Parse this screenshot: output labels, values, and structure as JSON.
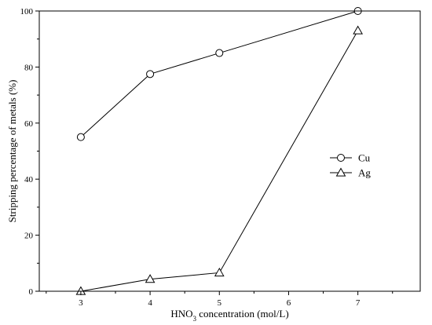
{
  "chart_data": {
    "type": "line",
    "x": [
      3,
      4,
      5,
      7
    ],
    "xlim": [
      2.4,
      7.9
    ],
    "ylim": [
      0,
      100
    ],
    "xticks": [
      3,
      4,
      5,
      6,
      7
    ],
    "yticks": [
      0,
      20,
      40,
      60,
      80,
      100
    ],
    "xlabel": "HNO3 concentration (mol/L)",
    "xlabel_parts": {
      "prefix": "HNO",
      "subscript": "3",
      "suffix": " concentration (mol/L)"
    },
    "ylabel": "Stripping percentage of metals (%)",
    "grid": false,
    "legend_position": "right",
    "series": [
      {
        "name": "Cu",
        "marker": "circle",
        "values": [
          55,
          77.5,
          85,
          100
        ]
      },
      {
        "name": "Ag",
        "marker": "triangle",
        "values": [
          0,
          4.3,
          6.6,
          93
        ]
      }
    ]
  }
}
